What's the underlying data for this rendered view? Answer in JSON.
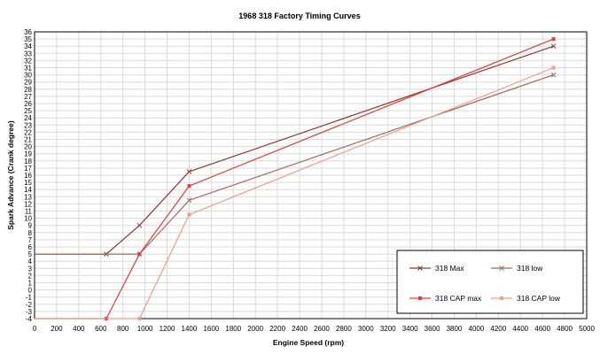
{
  "chart_data": {
    "type": "line",
    "title": "1968 318 Factory Timing Curves",
    "xlabel": "Engine Speed (rpm)",
    "ylabel": "Spark Advance (Crank degree)",
    "xlim": [
      0,
      5000
    ],
    "ylim": [
      -4,
      36
    ],
    "x_ticks": [
      "0",
      "200",
      "400",
      "600",
      "800",
      "1000",
      "1200",
      "1400",
      "1600",
      "1800",
      "2000",
      "2200",
      "2400",
      "2600",
      "2800",
      "3000",
      "3200",
      "3400",
      "3600",
      "3800",
      "4000",
      "4200",
      "4400",
      "4600",
      "4800",
      "5000"
    ],
    "y_ticks": [
      "-4",
      "-3",
      "-2",
      "-1",
      "0",
      "1",
      "2",
      "3",
      "4",
      "5",
      "6",
      "7",
      "8",
      "9",
      "10",
      "11",
      "12",
      "13",
      "14",
      "15",
      "16",
      "17",
      "18",
      "19",
      "20",
      "21",
      "22",
      "23",
      "24",
      "25",
      "26",
      "27",
      "28",
      "29",
      "30",
      "31",
      "32",
      "33",
      "34",
      "35",
      "36"
    ],
    "grid": true,
    "legend_position": "bottom-right",
    "series": [
      {
        "name": "318 Max",
        "color": "#8B3A2A",
        "marker": "x",
        "points": [
          [
            0,
            5
          ],
          [
            650,
            5
          ],
          [
            950,
            9
          ],
          [
            1400,
            16.5
          ],
          [
            4700,
            34
          ]
        ]
      },
      {
        "name": "318 low",
        "color": "#9C6A5C",
        "marker": "x",
        "points": [
          [
            0,
            5
          ],
          [
            950,
            5
          ],
          [
            1400,
            12.5
          ],
          [
            4700,
            30
          ]
        ]
      },
      {
        "name": "318 CAP max",
        "color": "#E83A3A",
        "marker": "square",
        "points": [
          [
            0,
            -4
          ],
          [
            650,
            -4
          ],
          [
            950,
            5
          ],
          [
            1400,
            14.5
          ],
          [
            4700,
            35
          ]
        ]
      },
      {
        "name": "318 CAP low",
        "color": "#F59A8A",
        "marker": "square",
        "points": [
          [
            0,
            -4
          ],
          [
            950,
            -4
          ],
          [
            1400,
            10.5
          ],
          [
            4700,
            31
          ]
        ]
      }
    ]
  }
}
